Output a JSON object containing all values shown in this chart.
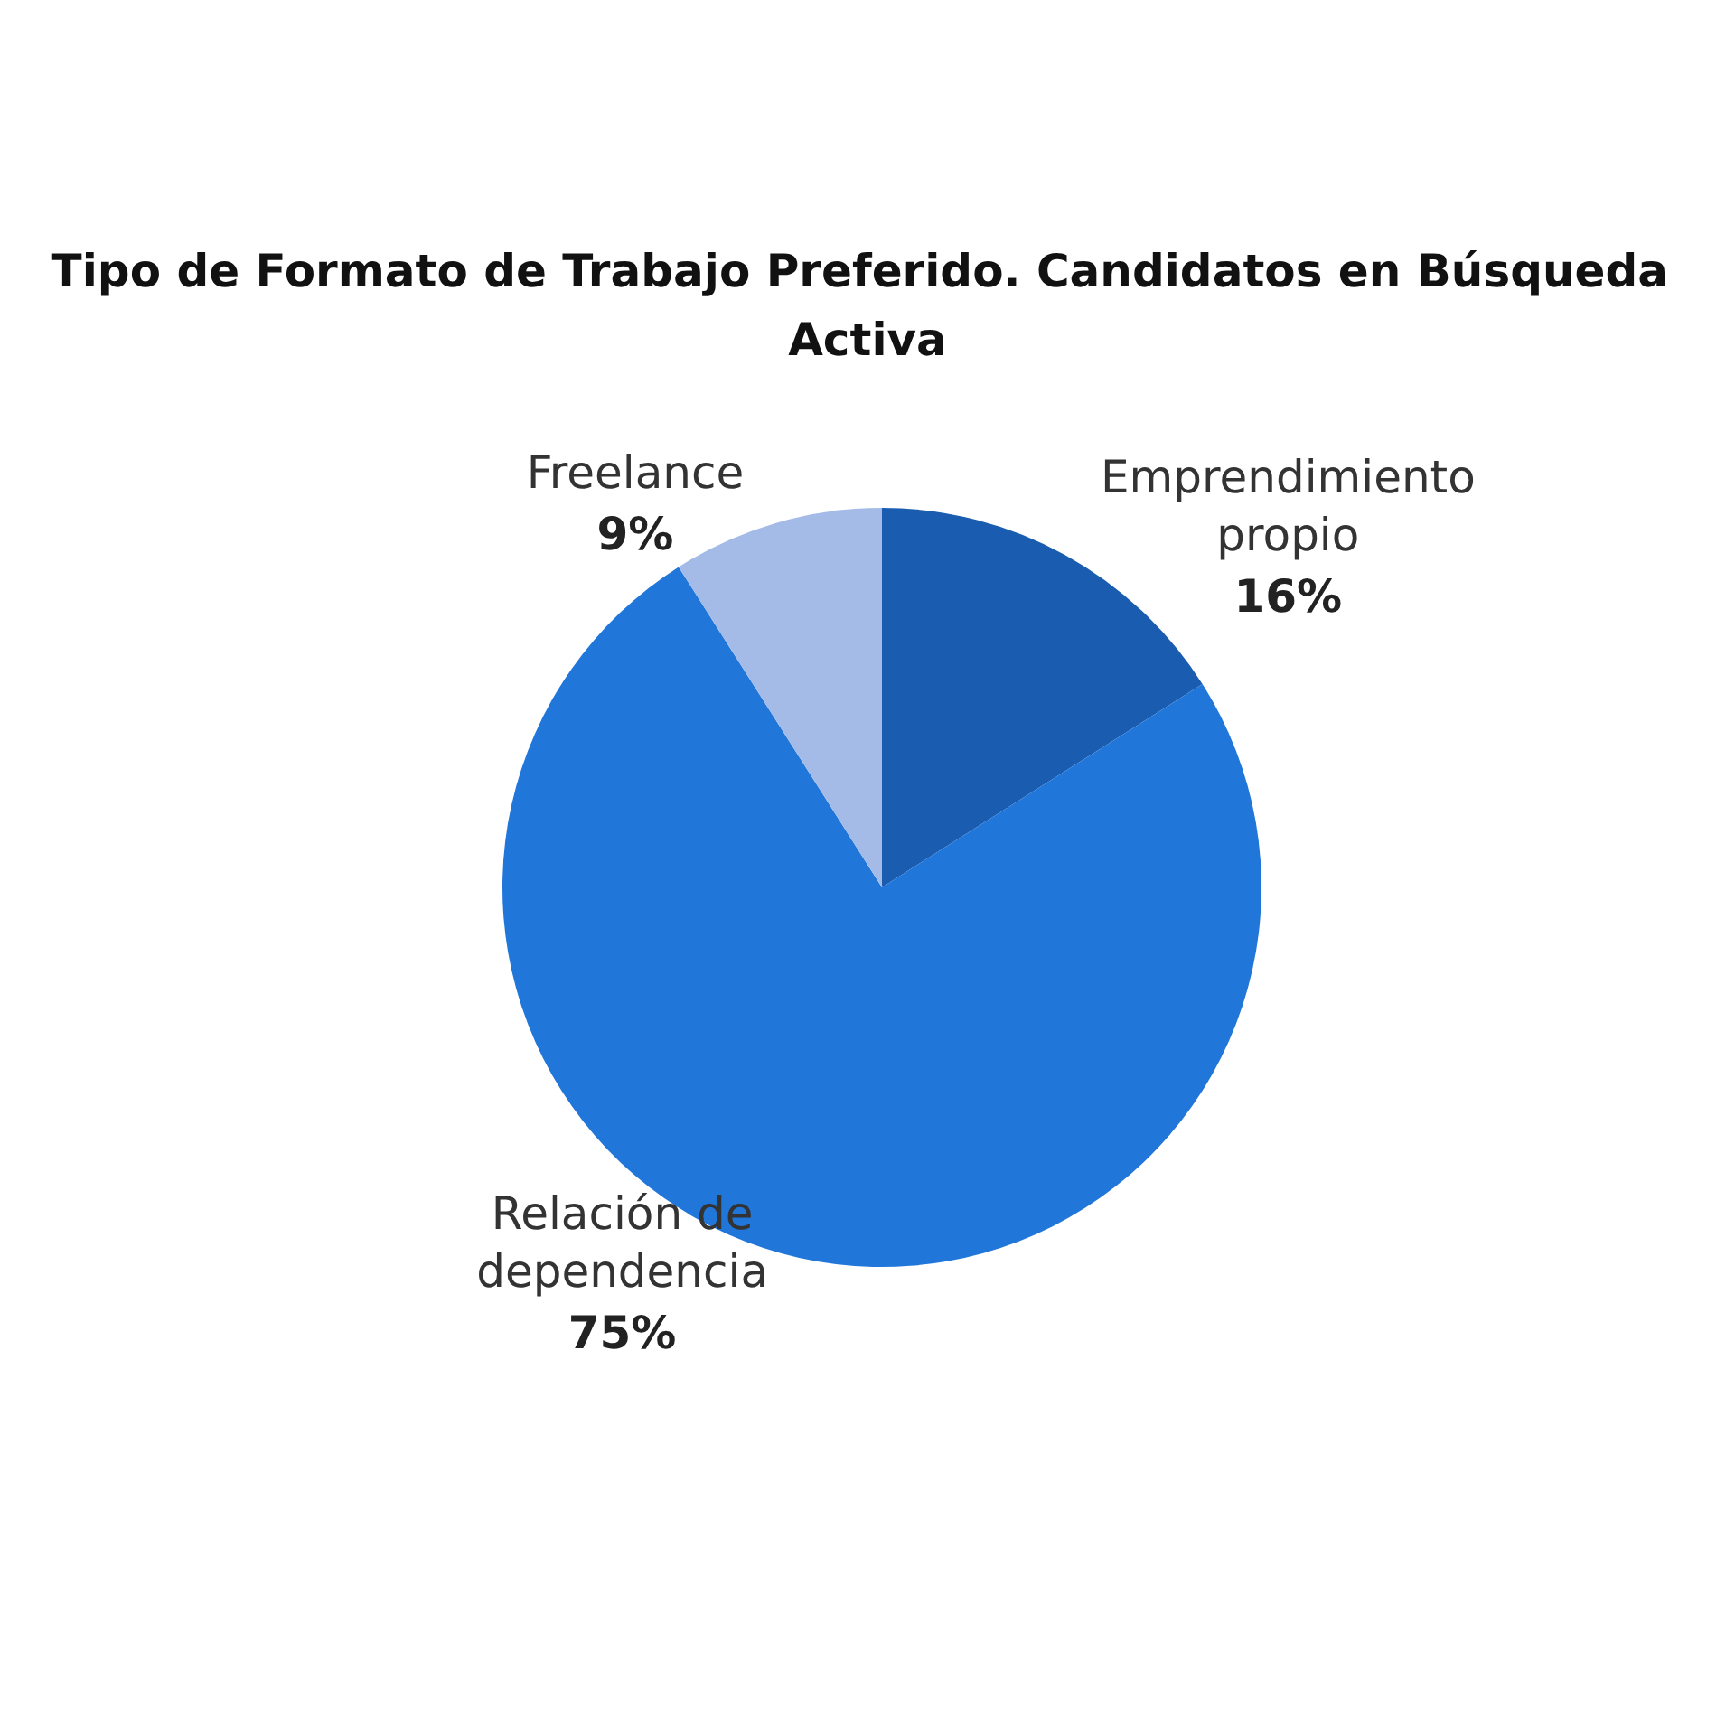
{
  "chart_data": {
    "type": "pie",
    "title": "Tipo de Formato de Trabajo Preferido. Candidatos en Búsqueda Activa",
    "categories": [
      "Emprendimiento propio",
      "Relación de dependencia",
      "Freelance"
    ],
    "values": [
      16,
      75,
      9
    ],
    "value_labels": [
      "16%",
      "75%",
      "9%"
    ],
    "colors": [
      "#1a5db0",
      "#2176d9",
      "#a3bbe6"
    ],
    "legend": false
  }
}
